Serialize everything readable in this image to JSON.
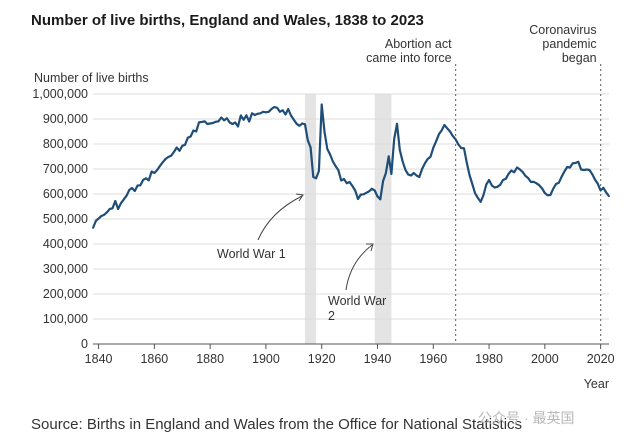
{
  "title": "Number of live births, England and Wales, 1838 to 2023",
  "source": "Source: Births in England and Wales from the Office for National Statistics",
  "watermark": "公众号 · 最英国",
  "colors": {
    "line": "#1f4e79",
    "grid": "#dcdcdc",
    "band": "#e4e4e4",
    "marker": "#777777"
  },
  "chart_data": {
    "type": "line",
    "title": "Number of live births, England and Wales, 1838 to 2023",
    "xlabel": "Year",
    "ylabel": "Number of live births",
    "xlim": [
      1838,
      2023
    ],
    "ylim": [
      0,
      1000000
    ],
    "x_ticks": [
      1840,
      1860,
      1880,
      1900,
      1920,
      1940,
      1960,
      1980,
      2000,
      2020
    ],
    "y_ticks": [
      0,
      100000,
      200000,
      300000,
      400000,
      500000,
      600000,
      700000,
      800000,
      900000,
      1000000
    ],
    "y_tick_labels": [
      "0",
      "100,000",
      "200,000",
      "300,000",
      "400,000",
      "500,000",
      "600,000",
      "700,000",
      "800,000",
      "900,000",
      "1,000,000"
    ],
    "grid": "horizontal",
    "shaded_periods": [
      {
        "label": "World War 1",
        "start": 1914,
        "end": 1918
      },
      {
        "label": "World War 2",
        "start": 1939,
        "end": 1945
      }
    ],
    "events": [
      {
        "label": [
          "Abortion act",
          "came into force"
        ],
        "x": 1968
      },
      {
        "label": [
          "Coronavirus",
          "pandemic",
          "began"
        ],
        "x": 2020
      }
    ],
    "series": [
      {
        "points": [
          [
            1838,
            464000
          ],
          [
            1839,
            492000
          ],
          [
            1840,
            502000
          ],
          [
            1841,
            512000
          ],
          [
            1842,
            517000
          ],
          [
            1843,
            527000
          ],
          [
            1844,
            540000
          ],
          [
            1845,
            543000
          ],
          [
            1846,
            572000
          ],
          [
            1847,
            540000
          ],
          [
            1848,
            563000
          ],
          [
            1849,
            578000
          ],
          [
            1850,
            593000
          ],
          [
            1851,
            616000
          ],
          [
            1852,
            624000
          ],
          [
            1853,
            612000
          ],
          [
            1854,
            634000
          ],
          [
            1855,
            635000
          ],
          [
            1856,
            657000
          ],
          [
            1857,
            663000
          ],
          [
            1858,
            655000
          ],
          [
            1859,
            690000
          ],
          [
            1860,
            684000
          ],
          [
            1861,
            696000
          ],
          [
            1862,
            712000
          ],
          [
            1863,
            727000
          ],
          [
            1864,
            740000
          ],
          [
            1865,
            748000
          ],
          [
            1866,
            753000
          ],
          [
            1867,
            768000
          ],
          [
            1868,
            786000
          ],
          [
            1869,
            773000
          ],
          [
            1870,
            793000
          ],
          [
            1871,
            797000
          ],
          [
            1872,
            825000
          ],
          [
            1873,
            830000
          ],
          [
            1874,
            854000
          ],
          [
            1875,
            850000
          ],
          [
            1876,
            887000
          ],
          [
            1877,
            888000
          ],
          [
            1878,
            891000
          ],
          [
            1879,
            880000
          ],
          [
            1880,
            882000
          ],
          [
            1881,
            884000
          ],
          [
            1882,
            889000
          ],
          [
            1883,
            891000
          ],
          [
            1884,
            906000
          ],
          [
            1885,
            895000
          ],
          [
            1886,
            903000
          ],
          [
            1887,
            886000
          ],
          [
            1888,
            880000
          ],
          [
            1889,
            886000
          ],
          [
            1890,
            870000
          ],
          [
            1891,
            914000
          ],
          [
            1892,
            897000
          ],
          [
            1893,
            915000
          ],
          [
            1894,
            890000
          ],
          [
            1895,
            923000
          ],
          [
            1896,
            916000
          ],
          [
            1897,
            921000
          ],
          [
            1898,
            923000
          ],
          [
            1899,
            929000
          ],
          [
            1900,
            927000
          ],
          [
            1901,
            929000
          ],
          [
            1902,
            940000
          ],
          [
            1903,
            948000
          ],
          [
            1904,
            945000
          ],
          [
            1905,
            929000
          ],
          [
            1906,
            935000
          ],
          [
            1907,
            918000
          ],
          [
            1908,
            940000
          ],
          [
            1909,
            914000
          ],
          [
            1910,
            897000
          ],
          [
            1911,
            881000
          ],
          [
            1912,
            873000
          ],
          [
            1913,
            882000
          ],
          [
            1914,
            879000
          ],
          [
            1915,
            815000
          ],
          [
            1916,
            786000
          ],
          [
            1917,
            668000
          ],
          [
            1918,
            663000
          ],
          [
            1919,
            692000
          ],
          [
            1920,
            958000
          ],
          [
            1921,
            849000
          ],
          [
            1922,
            780000
          ],
          [
            1923,
            758000
          ],
          [
            1924,
            730000
          ],
          [
            1925,
            711000
          ],
          [
            1926,
            695000
          ],
          [
            1927,
            654000
          ],
          [
            1928,
            660000
          ],
          [
            1929,
            643000
          ],
          [
            1930,
            648000
          ],
          [
            1931,
            632000
          ],
          [
            1932,
            614000
          ],
          [
            1933,
            580000
          ],
          [
            1934,
            598000
          ],
          [
            1935,
            599000
          ],
          [
            1936,
            605000
          ],
          [
            1937,
            611000
          ],
          [
            1938,
            621000
          ],
          [
            1939,
            614000
          ],
          [
            1940,
            590000
          ],
          [
            1941,
            579000
          ],
          [
            1942,
            652000
          ],
          [
            1943,
            684000
          ],
          [
            1944,
            751000
          ],
          [
            1945,
            680000
          ],
          [
            1946,
            821000
          ],
          [
            1947,
            881000
          ],
          [
            1948,
            776000
          ],
          [
            1949,
            731000
          ],
          [
            1950,
            697000
          ],
          [
            1951,
            678000
          ],
          [
            1952,
            674000
          ],
          [
            1953,
            684000
          ],
          [
            1954,
            674000
          ],
          [
            1955,
            668000
          ],
          [
            1956,
            700000
          ],
          [
            1957,
            723000
          ],
          [
            1958,
            740000
          ],
          [
            1959,
            749000
          ],
          [
            1960,
            785000
          ],
          [
            1961,
            811000
          ],
          [
            1962,
            839000
          ],
          [
            1963,
            854000
          ],
          [
            1964,
            876000
          ],
          [
            1965,
            863000
          ],
          [
            1966,
            850000
          ],
          [
            1967,
            832000
          ],
          [
            1968,
            819000
          ],
          [
            1969,
            798000
          ],
          [
            1970,
            784000
          ],
          [
            1971,
            783000
          ],
          [
            1972,
            725000
          ],
          [
            1973,
            676000
          ],
          [
            1974,
            640000
          ],
          [
            1975,
            603000
          ],
          [
            1976,
            584000
          ],
          [
            1977,
            569000
          ],
          [
            1978,
            596000
          ],
          [
            1979,
            638000
          ],
          [
            1980,
            656000
          ],
          [
            1981,
            634000
          ],
          [
            1982,
            626000
          ],
          [
            1983,
            629000
          ],
          [
            1984,
            637000
          ],
          [
            1985,
            656000
          ],
          [
            1986,
            661000
          ],
          [
            1987,
            681000
          ],
          [
            1988,
            694000
          ],
          [
            1989,
            687000
          ],
          [
            1990,
            706000
          ],
          [
            1991,
            699000
          ],
          [
            1992,
            689000
          ],
          [
            1993,
            673000
          ],
          [
            1994,
            664000
          ],
          [
            1995,
            648000
          ],
          [
            1996,
            649000
          ],
          [
            1997,
            643000
          ],
          [
            1998,
            635000
          ],
          [
            1999,
            622000
          ],
          [
            2000,
            604000
          ],
          [
            2001,
            595000
          ],
          [
            2002,
            596000
          ],
          [
            2003,
            621000
          ],
          [
            2004,
            640000
          ],
          [
            2005,
            645000
          ],
          [
            2006,
            669000
          ],
          [
            2007,
            690000
          ],
          [
            2008,
            708000
          ],
          [
            2009,
            706000
          ],
          [
            2010,
            723000
          ],
          [
            2011,
            724000
          ],
          [
            2012,
            729000
          ],
          [
            2013,
            698000
          ],
          [
            2014,
            696000
          ],
          [
            2015,
            698000
          ],
          [
            2016,
            696000
          ],
          [
            2017,
            679000
          ],
          [
            2018,
            657000
          ],
          [
            2019,
            641000
          ],
          [
            2020,
            614000
          ],
          [
            2021,
            625000
          ],
          [
            2022,
            606000
          ],
          [
            2023,
            591000
          ]
        ]
      }
    ]
  }
}
